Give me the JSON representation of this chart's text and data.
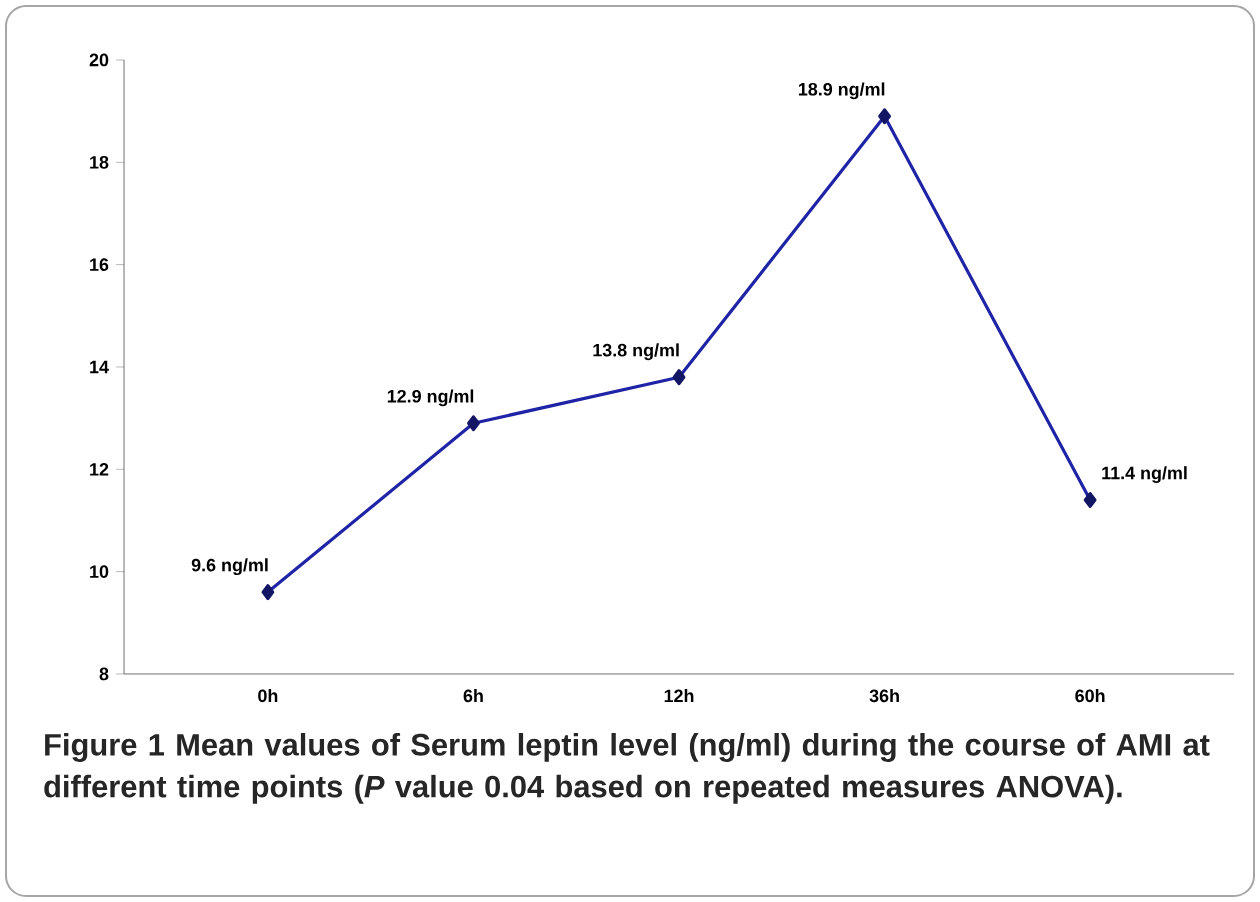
{
  "chart_data": {
    "type": "line",
    "categories": [
      "0h",
      "6h",
      "12h",
      "36h",
      "60h"
    ],
    "values": [
      9.6,
      12.9,
      13.8,
      18.9,
      11.4
    ],
    "value_labels": [
      "9.6 ng/ml",
      "12.9 ng/ml",
      "13.8 ng/ml",
      "18.9 ng/ml",
      "11.4 ng/ml"
    ],
    "color": "#1f24a6",
    "marker": "diamond",
    "line_style": "solid",
    "ylim": [
      8,
      20
    ],
    "yticks": [
      8,
      10,
      12,
      14,
      16,
      18,
      20
    ],
    "grid": false,
    "annotations": [
      "**Figure 1** Mean values of Serum leptin level (ng/ml) during the course of AMI at different time points (*P* value 0.04 based on repeated measures ANOVA)."
    ]
  }
}
